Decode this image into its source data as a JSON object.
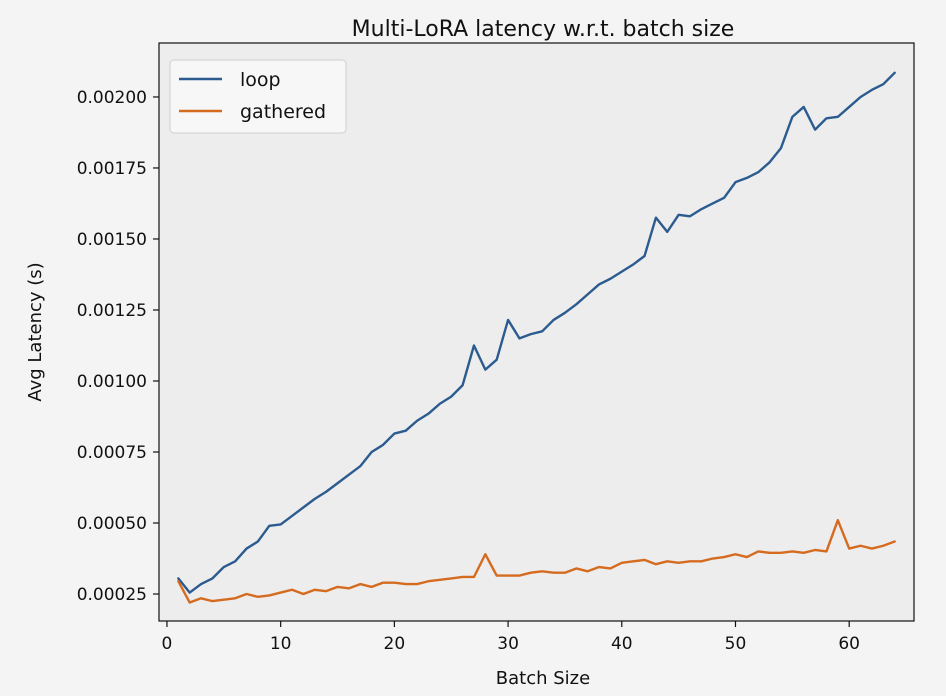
{
  "chart_data": {
    "type": "line",
    "title": "Multi-LoRA latency w.r.t. batch size",
    "xlabel": "Batch Size",
    "ylabel": "Avg Latency (s)",
    "xlim": [
      -0.7,
      65.7
    ],
    "ylim": [
      0.000155,
      0.00219
    ],
    "xticks": [
      0,
      10,
      20,
      30,
      40,
      50,
      60
    ],
    "xtick_labels": [
      "0",
      "10",
      "20",
      "30",
      "40",
      "50",
      "60"
    ],
    "yticks": [
      0.00025,
      0.0005,
      0.00075,
      0.001,
      0.00125,
      0.0015,
      0.00175,
      0.002
    ],
    "ytick_labels": [
      "0.00025",
      "0.00050",
      "0.00075",
      "0.00100",
      "0.00125",
      "0.00150",
      "0.00175",
      "0.00200"
    ],
    "grid": false,
    "legend_position": "top-left",
    "x": [
      1,
      2,
      3,
      4,
      5,
      6,
      7,
      8,
      9,
      10,
      11,
      12,
      13,
      14,
      15,
      16,
      17,
      18,
      19,
      20,
      21,
      22,
      23,
      24,
      25,
      26,
      27,
      28,
      29,
      30,
      31,
      32,
      33,
      34,
      35,
      36,
      37,
      38,
      39,
      40,
      41,
      42,
      43,
      44,
      45,
      46,
      47,
      48,
      49,
      50,
      51,
      52,
      53,
      54,
      55,
      56,
      57,
      58,
      59,
      60,
      61,
      62,
      63,
      64
    ],
    "series": [
      {
        "name": "loop",
        "color": "#2b5b8f",
        "values": [
          0.000305,
          0.000255,
          0.000285,
          0.000305,
          0.000345,
          0.000365,
          0.00041,
          0.000435,
          0.00049,
          0.000495,
          0.000525,
          0.000555,
          0.000585,
          0.00061,
          0.00064,
          0.00067,
          0.0007,
          0.00075,
          0.000775,
          0.000815,
          0.000825,
          0.00086,
          0.000885,
          0.00092,
          0.000945,
          0.000985,
          0.001125,
          0.00104,
          0.001075,
          0.001215,
          0.00115,
          0.001165,
          0.001175,
          0.001215,
          0.00124,
          0.00127,
          0.001305,
          0.00134,
          0.00136,
          0.001385,
          0.00141,
          0.00144,
          0.001575,
          0.001525,
          0.001585,
          0.00158,
          0.001605,
          0.001625,
          0.001645,
          0.0017,
          0.001715,
          0.001735,
          0.00177,
          0.00182,
          0.00193,
          0.001965,
          0.001885,
          0.001925,
          0.00193,
          0.001965,
          0.002,
          0.002025,
          0.002045,
          0.002085
        ]
      },
      {
        "name": "gathered",
        "color": "#d56b1f",
        "values": [
          0.000295,
          0.00022,
          0.000235,
          0.000225,
          0.00023,
          0.000235,
          0.00025,
          0.00024,
          0.000245,
          0.000255,
          0.000265,
          0.00025,
          0.000265,
          0.00026,
          0.000275,
          0.00027,
          0.000285,
          0.000275,
          0.00029,
          0.00029,
          0.000285,
          0.000285,
          0.000295,
          0.0003,
          0.000305,
          0.00031,
          0.00031,
          0.00039,
          0.000315,
          0.000315,
          0.000315,
          0.000325,
          0.00033,
          0.000325,
          0.000325,
          0.00034,
          0.00033,
          0.000345,
          0.00034,
          0.00036,
          0.000365,
          0.00037,
          0.000355,
          0.000365,
          0.00036,
          0.000365,
          0.000365,
          0.000375,
          0.00038,
          0.00039,
          0.00038,
          0.0004,
          0.000395,
          0.000395,
          0.0004,
          0.000395,
          0.000405,
          0.0004,
          0.00051,
          0.00041,
          0.00042,
          0.00041,
          0.00042,
          0.000435
        ]
      }
    ]
  }
}
